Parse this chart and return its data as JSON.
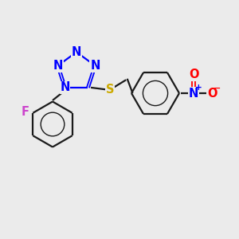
{
  "bg_color": "#ebebeb",
  "bond_color": "#1a1a1a",
  "N_color": "#0000ff",
  "S_color": "#ccaa00",
  "F_color": "#cc44cc",
  "O_color": "#ff0000",
  "figsize": [
    3.0,
    3.0
  ],
  "dpi": 100,
  "xlim": [
    0,
    10
  ],
  "ylim": [
    0,
    10
  ]
}
